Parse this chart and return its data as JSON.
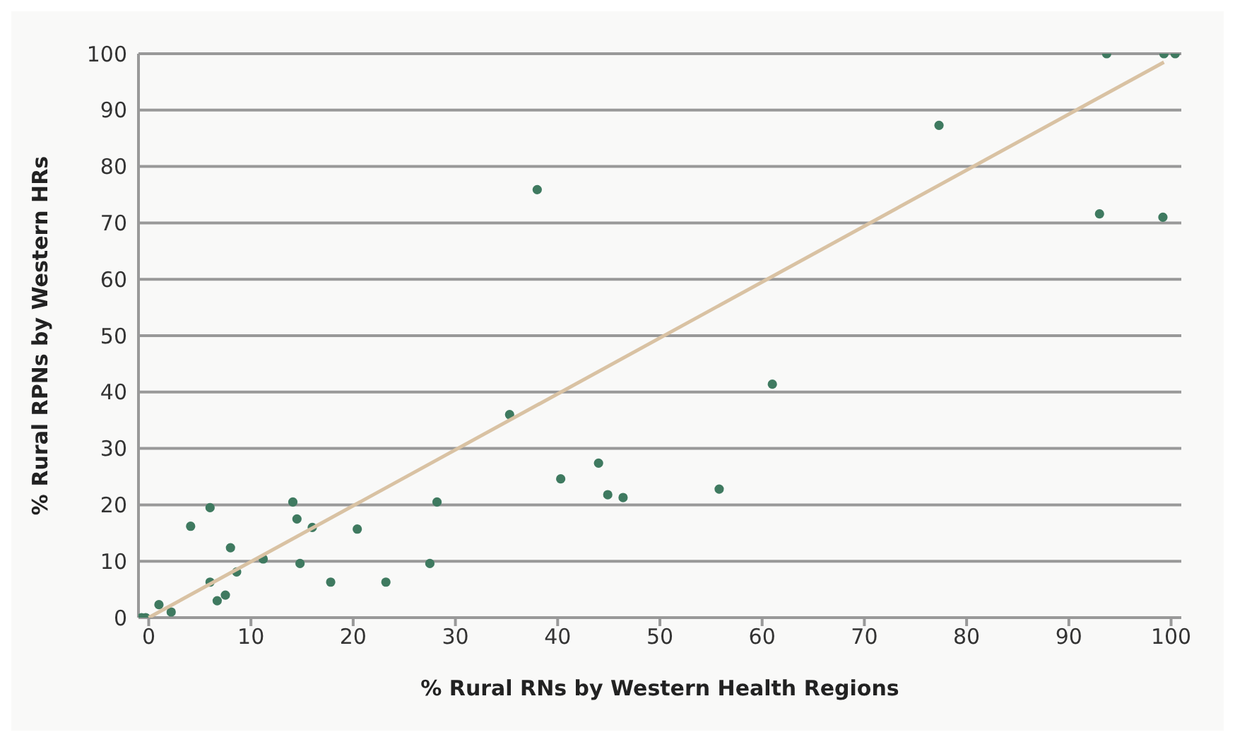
{
  "chart_data": {
    "type": "scatter",
    "xlabel": "% Rural RNs by Western Health Regions",
    "ylabel": "% Rural RPNs by Western HRs",
    "xlim": [
      -1,
      101
    ],
    "ylim": [
      0,
      100
    ],
    "xticks": [
      0,
      10,
      20,
      30,
      40,
      50,
      60,
      70,
      80,
      90,
      100
    ],
    "yticks": [
      0,
      10,
      20,
      30,
      40,
      50,
      60,
      70,
      80,
      90,
      100
    ],
    "grid": "y",
    "marker": "circle",
    "series": [
      {
        "color": "#3f7a60",
        "x": [
          -0.7,
          -0.3,
          1,
          2.2,
          4.1,
          6,
          6,
          6.7,
          7.5,
          8,
          8.6,
          11.2,
          14.1,
          14.5,
          14.8,
          16,
          17.8,
          20.4,
          23.2,
          27.5,
          28.2,
          35.3,
          38,
          40.3,
          44,
          44.9,
          46.4,
          55.8,
          61,
          77.3,
          93,
          93.7,
          99.2,
          99.3,
          100.4
        ],
        "values": [
          0,
          0,
          2.3,
          1,
          16.2,
          19.5,
          6.3,
          3,
          4,
          12.4,
          8.1,
          10.4,
          20.5,
          17.5,
          9.6,
          16,
          6.3,
          15.7,
          6.3,
          9.6,
          20.5,
          36,
          75.9,
          24.6,
          27.4,
          21.8,
          21.3,
          22.8,
          41.4,
          87.3,
          71.6,
          100,
          71,
          100,
          100
        ]
      },
      {
        "type": "line",
        "color": "#d9c2a3",
        "marker": "none",
        "x": [
          0,
          99.3
        ],
        "values": [
          0,
          98.5
        ]
      }
    ]
  }
}
